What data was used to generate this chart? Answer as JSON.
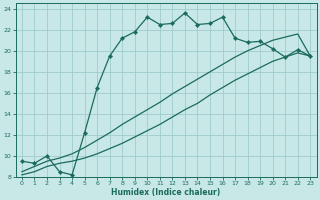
{
  "xlabel": "Humidex (Indice chaleur)",
  "xlim": [
    -0.5,
    23.5
  ],
  "ylim": [
    8,
    24.5
  ],
  "yticks": [
    8,
    10,
    12,
    14,
    16,
    18,
    20,
    22,
    24
  ],
  "xticks": [
    0,
    1,
    2,
    3,
    4,
    5,
    6,
    7,
    8,
    9,
    10,
    11,
    12,
    13,
    14,
    15,
    16,
    17,
    18,
    19,
    20,
    21,
    22,
    23
  ],
  "bg_color": "#c8e8e8",
  "line_color": "#1a6b5a",
  "grid_color": "#a0cccc",
  "line1_x": [
    0,
    1,
    2,
    3,
    4,
    5,
    6,
    7,
    8,
    9,
    10,
    11,
    12,
    13,
    14,
    15,
    16,
    17,
    18,
    19,
    20,
    21,
    22,
    23
  ],
  "line1_y": [
    9.5,
    9.3,
    10.0,
    8.5,
    8.2,
    12.2,
    16.5,
    19.5,
    21.2,
    21.8,
    23.2,
    22.5,
    22.6,
    23.6,
    22.5,
    22.6,
    23.2,
    21.2,
    20.8,
    20.9,
    20.2,
    19.4,
    20.1,
    19.5
  ],
  "line2_x": [
    0,
    1,
    2,
    3,
    4,
    5,
    6,
    7,
    8,
    9,
    10,
    11,
    12,
    13,
    14,
    15,
    16,
    17,
    18,
    19,
    20,
    21,
    22,
    23
  ],
  "line2_y": [
    8.2,
    8.5,
    9.0,
    9.3,
    9.5,
    9.8,
    10.2,
    10.7,
    11.2,
    11.8,
    12.4,
    13.0,
    13.7,
    14.4,
    15.0,
    15.8,
    16.5,
    17.2,
    17.8,
    18.4,
    19.0,
    19.4,
    19.8,
    19.5
  ],
  "line3_x": [
    0,
    1,
    2,
    3,
    4,
    5,
    6,
    7,
    8,
    9,
    10,
    11,
    12,
    13,
    14,
    15,
    16,
    17,
    18,
    19,
    20,
    21,
    22,
    23
  ],
  "line3_y": [
    8.5,
    9.0,
    9.5,
    9.8,
    10.2,
    10.8,
    11.5,
    12.2,
    13.0,
    13.7,
    14.4,
    15.1,
    15.9,
    16.6,
    17.3,
    18.0,
    18.7,
    19.4,
    20.0,
    20.5,
    21.0,
    21.3,
    21.6,
    19.5
  ]
}
